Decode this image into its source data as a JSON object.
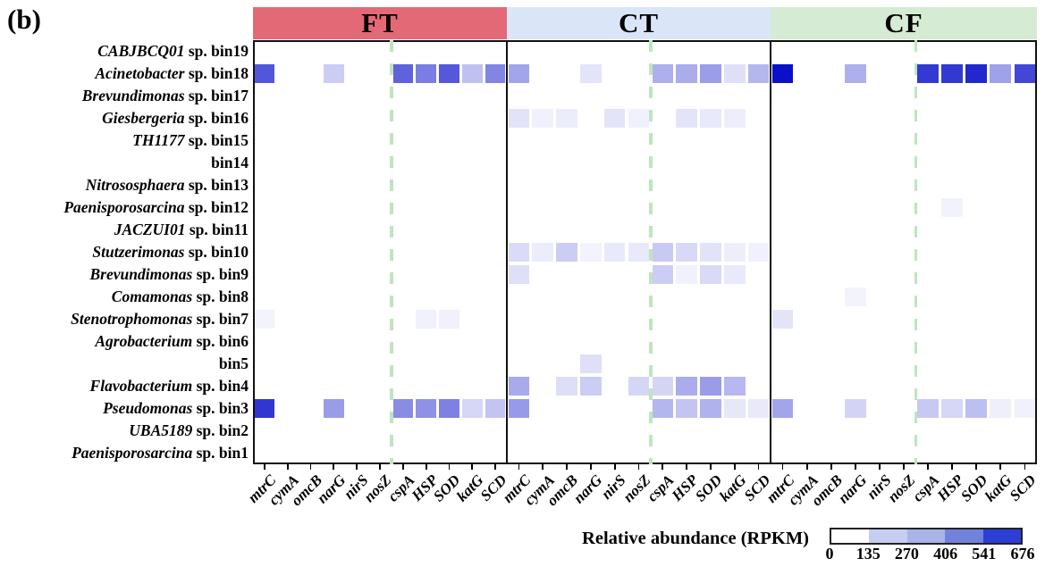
{
  "figure_label": "(b)",
  "legend": {
    "title": "Relative abundance (RPKM)",
    "ticks": [
      0,
      135,
      270,
      406,
      541,
      676
    ],
    "segment_colors": [
      "#ffffff",
      "#c7cdf0",
      "#a9b3e8",
      "#7282dc",
      "#2c3ed6"
    ]
  },
  "colors": {
    "header_fills": [
      "#e46976",
      "#dae6f8",
      "#d5ebd3"
    ],
    "heat_low": "#ffffff",
    "heat_high": "#0a10c8",
    "dashed_line": "#bfe5bf",
    "panel_border": "#111111"
  },
  "chart_data": {
    "type": "heatmap",
    "title": "",
    "value_label": "Relative abundance (RPKM)",
    "value_range": [
      0,
      676
    ],
    "genes": [
      "mtrC",
      "cymA",
      "omcB",
      "narG",
      "nirS",
      "nosZ",
      "cspA",
      "HSP",
      "SOD",
      "katG",
      "SCD"
    ],
    "separator_after_gene": "nosZ",
    "rows": [
      {
        "genus": "CABJBCQ01",
        "suffix": "sp. bin19"
      },
      {
        "genus": "Acinetobacter",
        "suffix": "sp. bin18"
      },
      {
        "genus": "Brevundimonas",
        "suffix": "sp. bin17"
      },
      {
        "genus": "Giesbergeria",
        "suffix": "sp. bin16"
      },
      {
        "genus": "TH1177",
        "suffix": "sp. bin15"
      },
      {
        "genus": "",
        "suffix": "bin14"
      },
      {
        "genus": "Nitrososphaera",
        "suffix": "sp. bin13"
      },
      {
        "genus": "Paenisporosarcina",
        "suffix": "sp. bin12"
      },
      {
        "genus": "JACZUI01",
        "suffix": "sp. bin11"
      },
      {
        "genus": "Stutzerimonas",
        "suffix": "sp. bin10"
      },
      {
        "genus": "Brevundimonas",
        "suffix": "sp. bin9"
      },
      {
        "genus": "Comamonas",
        "suffix": "sp. bin8"
      },
      {
        "genus": "Stenotrophomonas",
        "suffix": "sp. bin7"
      },
      {
        "genus": "Agrobacterium",
        "suffix": "sp. bin6"
      },
      {
        "genus": "",
        "suffix": "bin5"
      },
      {
        "genus": "Flavobacterium",
        "suffix": "sp. bin4"
      },
      {
        "genus": "Pseudomonas",
        "suffix": "sp. bin3"
      },
      {
        "genus": "UBA5189",
        "suffix": "sp. bin2"
      },
      {
        "genus": "Paenisporosarcina",
        "suffix": "sp. bin1"
      }
    ],
    "panels": [
      {
        "label": "FT",
        "matrix": [
          [
            0,
            0,
            0,
            0,
            0,
            0,
            0,
            0,
            0,
            0,
            0
          ],
          [
            477,
            0,
            0,
            141,
            0,
            0,
            444,
            367,
            472,
            174,
            345
          ],
          [
            0,
            0,
            0,
            0,
            0,
            0,
            0,
            0,
            0,
            0,
            0
          ],
          [
            0,
            0,
            0,
            0,
            0,
            0,
            0,
            0,
            0,
            0,
            0
          ],
          [
            0,
            0,
            0,
            0,
            0,
            0,
            0,
            0,
            0,
            0,
            0
          ],
          [
            0,
            0,
            0,
            0,
            0,
            0,
            0,
            0,
            0,
            0,
            0
          ],
          [
            0,
            0,
            0,
            0,
            0,
            0,
            0,
            0,
            0,
            0,
            0
          ],
          [
            0,
            0,
            0,
            0,
            0,
            0,
            0,
            0,
            0,
            0,
            0
          ],
          [
            0,
            0,
            0,
            0,
            0,
            0,
            0,
            0,
            0,
            0,
            0
          ],
          [
            0,
            0,
            0,
            0,
            0,
            0,
            0,
            0,
            0,
            0,
            0
          ],
          [
            0,
            0,
            0,
            0,
            0,
            0,
            0,
            0,
            0,
            0,
            0
          ],
          [
            0,
            0,
            0,
            0,
            0,
            0,
            0,
            0,
            0,
            0,
            0
          ],
          [
            33,
            0,
            0,
            0,
            0,
            0,
            0,
            41,
            41,
            0,
            0
          ],
          [
            0,
            0,
            0,
            0,
            0,
            0,
            0,
            0,
            0,
            0,
            0
          ],
          [
            0,
            0,
            0,
            0,
            0,
            0,
            0,
            0,
            0,
            0,
            0
          ],
          [
            0,
            0,
            0,
            0,
            0,
            0,
            0,
            0,
            0,
            0,
            0
          ],
          [
            568,
            0,
            0,
            279,
            0,
            0,
            326,
            312,
            356,
            113,
            166
          ],
          [
            0,
            0,
            0,
            0,
            0,
            0,
            0,
            0,
            0,
            0,
            0
          ],
          [
            0,
            0,
            0,
            0,
            0,
            0,
            0,
            0,
            0,
            0,
            0
          ]
        ]
      },
      {
        "label": "CT",
        "matrix": [
          [
            0,
            0,
            0,
            0,
            0,
            0,
            0,
            0,
            0,
            0,
            0
          ],
          [
            254,
            0,
            0,
            77,
            0,
            0,
            224,
            235,
            276,
            88,
            207
          ],
          [
            0,
            0,
            0,
            0,
            0,
            0,
            0,
            0,
            0,
            0,
            0
          ],
          [
            80,
            41,
            52,
            0,
            75,
            41,
            0,
            75,
            63,
            47,
            0
          ],
          [
            0,
            0,
            0,
            0,
            0,
            0,
            0,
            0,
            0,
            0,
            0
          ],
          [
            0,
            0,
            0,
            0,
            0,
            0,
            0,
            0,
            0,
            0,
            0
          ],
          [
            0,
            0,
            0,
            0,
            0,
            0,
            0,
            0,
            0,
            0,
            0
          ],
          [
            0,
            0,
            0,
            0,
            0,
            0,
            0,
            0,
            0,
            0,
            0
          ],
          [
            0,
            0,
            0,
            0,
            0,
            0,
            0,
            0,
            0,
            0,
            0
          ],
          [
            102,
            52,
            141,
            33,
            63,
            63,
            149,
            108,
            80,
            47,
            41
          ],
          [
            88,
            0,
            0,
            0,
            0,
            0,
            141,
            41,
            105,
            63,
            0
          ],
          [
            0,
            0,
            0,
            0,
            0,
            0,
            0,
            0,
            0,
            0,
            0
          ],
          [
            0,
            0,
            0,
            0,
            0,
            0,
            0,
            0,
            0,
            0,
            0
          ],
          [
            0,
            0,
            0,
            0,
            0,
            0,
            0,
            0,
            0,
            0,
            0
          ],
          [
            0,
            0,
            0,
            88,
            0,
            0,
            0,
            0,
            0,
            0,
            0
          ],
          [
            240,
            0,
            94,
            141,
            0,
            116,
            119,
            235,
            279,
            201,
            0
          ],
          [
            287,
            0,
            0,
            0,
            0,
            0,
            207,
            166,
            218,
            69,
            61
          ],
          [
            0,
            0,
            0,
            0,
            0,
            0,
            0,
            0,
            0,
            0,
            0
          ],
          [
            0,
            0,
            0,
            0,
            0,
            0,
            0,
            0,
            0,
            0,
            0
          ]
        ]
      },
      {
        "label": "CF",
        "matrix": [
          [
            0,
            0,
            0,
            0,
            0,
            0,
            0,
            0,
            0,
            0,
            0
          ],
          [
            676,
            0,
            0,
            224,
            0,
            0,
            560,
            562,
            607,
            265,
            521
          ],
          [
            0,
            0,
            0,
            0,
            0,
            0,
            0,
            0,
            0,
            0,
            0
          ],
          [
            0,
            0,
            0,
            0,
            0,
            0,
            0,
            0,
            0,
            0,
            0
          ],
          [
            0,
            0,
            0,
            0,
            0,
            0,
            0,
            0,
            0,
            0,
            0
          ],
          [
            0,
            0,
            0,
            0,
            0,
            0,
            0,
            0,
            0,
            0,
            0
          ],
          [
            0,
            0,
            0,
            0,
            0,
            0,
            0,
            0,
            0,
            0,
            0
          ],
          [
            0,
            0,
            0,
            0,
            0,
            0,
            0,
            36,
            0,
            0,
            0
          ],
          [
            0,
            0,
            0,
            0,
            0,
            0,
            0,
            0,
            0,
            0,
            0
          ],
          [
            0,
            0,
            0,
            0,
            0,
            0,
            0,
            0,
            0,
            0,
            0
          ],
          [
            0,
            0,
            0,
            0,
            0,
            0,
            0,
            0,
            0,
            0,
            0
          ],
          [
            0,
            0,
            0,
            33,
            0,
            0,
            0,
            0,
            0,
            0,
            0
          ],
          [
            75,
            0,
            0,
            0,
            0,
            0,
            0,
            0,
            0,
            0,
            0
          ],
          [
            0,
            0,
            0,
            0,
            0,
            0,
            0,
            0,
            0,
            0,
            0
          ],
          [
            0,
            0,
            0,
            0,
            0,
            0,
            0,
            0,
            0,
            0,
            0
          ],
          [
            0,
            0,
            0,
            0,
            0,
            0,
            0,
            0,
            0,
            0,
            0
          ],
          [
            254,
            0,
            0,
            121,
            0,
            0,
            152,
            113,
            182,
            44,
            39
          ],
          [
            0,
            0,
            0,
            0,
            0,
            0,
            0,
            0,
            0,
            0,
            0
          ],
          [
            0,
            0,
            0,
            0,
            0,
            0,
            0,
            0,
            0,
            0,
            0
          ]
        ]
      }
    ]
  }
}
